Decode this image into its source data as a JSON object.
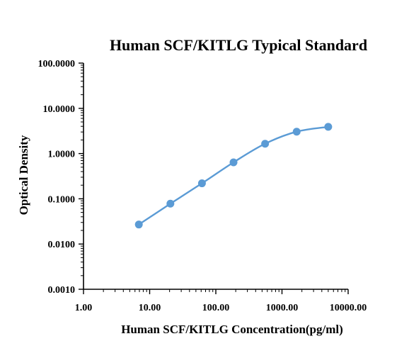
{
  "chart_data": {
    "type": "scatter",
    "title": "Human SCF/KITLG  Typical Standard",
    "xlabel": "Human SCF/KITLG Concentration(pg/ml)",
    "ylabel": "Optical Density",
    "x_scale": "log",
    "y_scale": "log",
    "xlim": [
      1,
      10000
    ],
    "ylim": [
      0.001,
      100
    ],
    "x_ticks": [
      "1.00",
      "10.00",
      "100.00",
      "1000.00",
      "10000.00"
    ],
    "y_ticks": [
      "0.0010",
      "0.0100",
      "0.1000",
      "1.0000",
      "10.0000",
      "100.0000"
    ],
    "grid": false,
    "colors": {
      "series": "#5b9bd5"
    },
    "series": [
      {
        "x": [
          6.86,
          20.58,
          61.73,
          185.19,
          555.56,
          1666.67,
          5000
        ],
        "y": [
          0.027,
          0.078,
          0.22,
          0.64,
          1.65,
          3.05,
          3.9
        ]
      }
    ]
  }
}
